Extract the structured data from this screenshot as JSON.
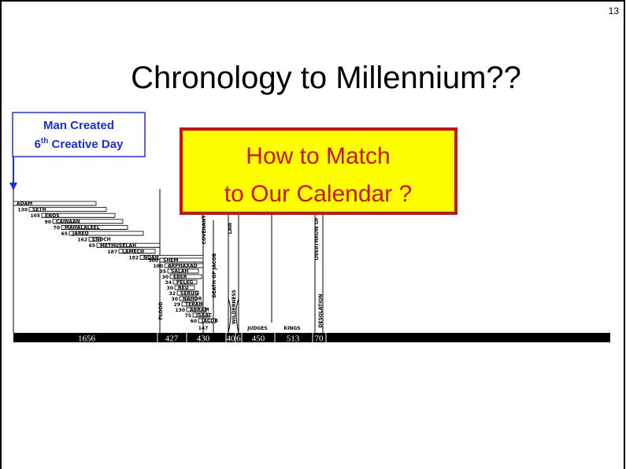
{
  "page_number": "13",
  "title": "Chronology to Millennium??",
  "callout": {
    "line1": "Man Created",
    "line2_num": "6",
    "line2_sup": "th",
    "line2_rest": " Creative Day"
  },
  "question": {
    "line1": "How to Match",
    "line2": "to Our Calendar ?"
  },
  "before_flood": [
    {
      "offset": "",
      "name": "ADAM"
    },
    {
      "offset": "130",
      "name": "SETH"
    },
    {
      "offset": "105",
      "name": "ENOS"
    },
    {
      "offset": "90",
      "name": "CAINAAN"
    },
    {
      "offset": "70",
      "name": "MAHALALEEL"
    },
    {
      "offset": "65",
      "name": "JARED"
    },
    {
      "offset": "162",
      "name": "ENOCH"
    },
    {
      "offset": "65",
      "name": "METHUSELAH"
    },
    {
      "offset": "187",
      "name": "LAMECH"
    },
    {
      "offset": "182",
      "name": "NOAH"
    }
  ],
  "after_flood": [
    {
      "offset": "500",
      "name": "SHEM"
    },
    {
      "offset": "100",
      "name": "ARPHAXAD"
    },
    {
      "offset": "35",
      "name": "SALAH"
    },
    {
      "offset": "30",
      "name": "EBER"
    },
    {
      "offset": "34",
      "name": "PELEG"
    },
    {
      "offset": "30",
      "name": "REU"
    },
    {
      "offset": "32",
      "name": "SERUG"
    },
    {
      "offset": "30",
      "name": "NAHOR"
    },
    {
      "offset": "29",
      "name": "TERAH"
    },
    {
      "offset": "130",
      "name": "ABRAM"
    },
    {
      "offset": "75",
      "name": "ISAAC"
    },
    {
      "offset": "60",
      "name": "JACOB"
    }
  ],
  "jacob_age": "147",
  "events": [
    "FLOOD",
    "COVENANT",
    "DEATH OF JACOB",
    "LAW",
    "WILDERNESS",
    "OVERTHROW OF Z",
    "DESOLATION"
  ],
  "periods_named": [
    "JUDGES",
    "KINGS"
  ],
  "timeline": [
    "1656",
    "427",
    "430",
    "40",
    "6",
    "450",
    "513",
    "70"
  ]
}
